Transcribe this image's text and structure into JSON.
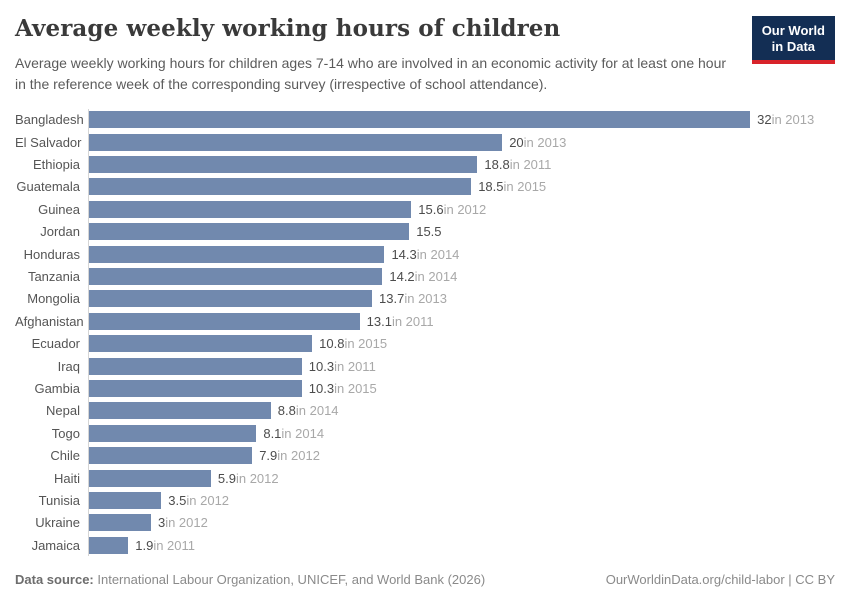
{
  "logo": {
    "line1": "Our World",
    "line2": "in Data",
    "bg_color": "#132e54",
    "stripe_color": "#d8232a"
  },
  "chart_data": {
    "type": "bar",
    "orientation": "horizontal",
    "title": "Average weekly working hours of children",
    "subtitle": "Average weekly working hours for children ages 7-14 who are involved in an economic activity for at least one hour in the reference week of the corresponding survey (irrespective of school attendance).",
    "categories": [
      "Bangladesh",
      "El Salvador",
      "Ethiopia",
      "Guatemala",
      "Guinea",
      "Jordan",
      "Honduras",
      "Tanzania",
      "Mongolia",
      "Afghanistan",
      "Ecuador",
      "Iraq",
      "Gambia",
      "Nepal",
      "Togo",
      "Chile",
      "Haiti",
      "Tunisia",
      "Ukraine",
      "Jamaica"
    ],
    "values": [
      32,
      20,
      18.8,
      18.5,
      15.6,
      15.5,
      14.3,
      14.2,
      13.7,
      13.1,
      10.8,
      10.3,
      10.3,
      8.8,
      8.1,
      7.9,
      5.9,
      3.5,
      3,
      1.9
    ],
    "years": [
      "2013",
      "2013",
      "2011",
      "2015",
      "2012",
      "",
      "2014",
      "2014",
      "2013",
      "2011",
      "2015",
      "2011",
      "2015",
      "2014",
      "2014",
      "2012",
      "2012",
      "2012",
      "2012",
      "2011"
    ],
    "xlim": [
      0,
      32
    ],
    "grid": false,
    "legend": "none",
    "bar_color": "#7189ae",
    "axis_line_color": "#d5d5d5"
  },
  "footer": {
    "source_label": "Data source:",
    "source_text": "International Labour Organization, UNICEF, and World Bank (2026)",
    "link_text": "OurWorldinData.org/child-labor | CC BY"
  }
}
